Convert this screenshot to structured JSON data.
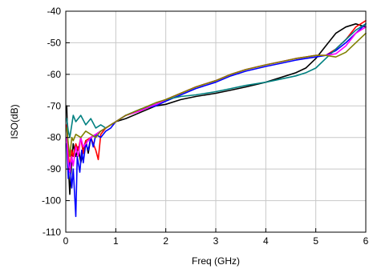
{
  "chart_data": {
    "type": "line",
    "title": "",
    "xlabel": "Freq (GHz)",
    "ylabel": "ISO(dB)",
    "xlim": [
      0,
      6
    ],
    "ylim": [
      -110,
      -40
    ],
    "xticks": [
      0,
      1,
      2,
      3,
      4,
      5,
      6
    ],
    "yticks": [
      -110,
      -100,
      -90,
      -80,
      -70,
      -60,
      -50,
      -40
    ],
    "grid": true,
    "legend": "none",
    "series": [
      {
        "color": "#000000",
        "x": [
          0.02,
          0.05,
          0.08,
          0.12,
          0.15,
          0.2,
          0.25,
          0.3,
          0.35,
          0.4,
          0.45,
          0.5,
          0.6,
          0.7,
          0.8,
          0.9,
          1.0,
          1.2,
          1.5,
          1.8,
          2.0,
          2.3,
          2.6,
          3.0,
          3.3,
          3.6,
          4.0,
          4.3,
          4.6,
          4.8,
          5.0,
          5.2,
          5.4,
          5.6,
          5.8,
          6.0
        ],
        "y": [
          -70,
          -88,
          -98,
          -87,
          -82,
          -86,
          -83,
          -88,
          -84,
          -81,
          -85,
          -80,
          -79,
          -78,
          -77,
          -76,
          -75,
          -74,
          -72,
          -70,
          -69.5,
          -68,
          -67,
          -66,
          -65,
          -64,
          -62.5,
          -61,
          -59.5,
          -58,
          -55,
          -51,
          -47,
          -45,
          -44,
          -45
        ]
      },
      {
        "color": "#ff0000",
        "x": [
          0.02,
          0.05,
          0.08,
          0.12,
          0.15,
          0.2,
          0.25,
          0.3,
          0.35,
          0.4,
          0.5,
          0.6,
          0.65,
          0.7,
          0.8,
          0.9,
          1.0,
          1.2,
          1.5,
          1.8,
          2.0,
          2.3,
          2.6,
          3.0,
          3.3,
          3.6,
          4.0,
          4.3,
          4.6,
          4.8,
          5.0,
          5.2,
          5.4,
          5.6,
          5.8,
          6.0
        ],
        "y": [
          -76,
          -85,
          -90,
          -84,
          -86,
          -82,
          -84,
          -80,
          -85,
          -81,
          -80,
          -84,
          -87,
          -79,
          -77,
          -76,
          -75,
          -73,
          -71.5,
          -69.5,
          -68,
          -66,
          -64,
          -62,
          -60,
          -58.5,
          -57,
          -56,
          -55,
          -54.5,
          -54,
          -54,
          -52,
          -49,
          -45,
          -43
        ]
      },
      {
        "color": "#0000ff",
        "x": [
          0.02,
          0.05,
          0.08,
          0.12,
          0.15,
          0.2,
          0.23,
          0.28,
          0.32,
          0.35,
          0.4,
          0.45,
          0.5,
          0.55,
          0.6,
          0.7,
          0.8,
          0.9,
          1.0,
          1.2,
          1.5,
          1.8,
          2.0,
          2.3,
          2.6,
          3.0,
          3.3,
          3.6,
          4.0,
          4.3,
          4.6,
          4.8,
          5.0,
          5.2,
          5.4,
          5.6,
          5.8,
          6.0
        ],
        "y": [
          -82,
          -93,
          -88,
          -96,
          -90,
          -105,
          -86,
          -91,
          -84,
          -88,
          -82,
          -84,
          -80,
          -83,
          -79,
          -80,
          -78,
          -77,
          -75,
          -73,
          -71,
          -70,
          -68.5,
          -66.5,
          -64.5,
          -62.5,
          -60.5,
          -59,
          -57.5,
          -56.5,
          -55.5,
          -55,
          -54.5,
          -54,
          -52.5,
          -50,
          -47,
          -44
        ]
      },
      {
        "color": "#008080",
        "x": [
          0.02,
          0.05,
          0.08,
          0.12,
          0.15,
          0.2,
          0.3,
          0.4,
          0.5,
          0.6,
          0.7,
          0.8,
          0.9,
          1.0,
          1.2,
          1.5,
          1.8,
          2.0,
          2.3,
          2.6,
          3.0,
          3.3,
          3.6,
          4.0,
          4.3,
          4.6,
          4.8,
          5.0,
          5.2,
          5.4,
          5.6,
          5.8,
          6.0
        ],
        "y": [
          -74,
          -78,
          -80,
          -76,
          -73,
          -75,
          -73,
          -76,
          -74,
          -77,
          -76,
          -77,
          -76,
          -75,
          -73,
          -71,
          -69.5,
          -68,
          -67,
          -66.5,
          -65.5,
          -64.5,
          -63.5,
          -62.5,
          -61.5,
          -60.5,
          -59.5,
          -58,
          -55,
          -52,
          -49,
          -46,
          -44
        ]
      },
      {
        "color": "#ff00ff",
        "x": [
          0.02,
          0.05,
          0.08,
          0.12,
          0.15,
          0.2,
          0.25,
          0.3,
          0.35,
          0.4,
          0.5,
          0.6,
          0.7,
          0.8,
          0.9,
          1.0,
          1.2,
          1.5,
          1.8,
          2.0,
          2.3,
          2.6,
          3.0,
          3.3,
          3.6,
          4.0,
          4.3,
          4.6,
          4.8,
          5.0,
          5.2,
          5.4,
          5.6,
          5.8,
          6.0
        ],
        "y": [
          -80,
          -88,
          -91,
          -86,
          -89,
          -83,
          -86,
          -80,
          -83,
          -82,
          -80,
          -79,
          -78,
          -77,
          -76,
          -75,
          -73,
          -71.5,
          -69.5,
          -68,
          -66,
          -64,
          -62,
          -60,
          -58.5,
          -57,
          -56,
          -55,
          -54.5,
          -54,
          -54,
          -53.5,
          -51,
          -47,
          -45
        ]
      },
      {
        "color": "#808000",
        "x": [
          0.02,
          0.05,
          0.08,
          0.12,
          0.15,
          0.2,
          0.3,
          0.4,
          0.5,
          0.6,
          0.7,
          0.8,
          0.9,
          1.0,
          1.2,
          1.5,
          1.8,
          2.0,
          2.3,
          2.6,
          3.0,
          3.3,
          3.6,
          4.0,
          4.3,
          4.6,
          4.8,
          5.0,
          5.2,
          5.4,
          5.6,
          5.8,
          6.0
        ],
        "y": [
          -77,
          -82,
          -86,
          -80,
          -81,
          -79,
          -80,
          -78,
          -79,
          -80,
          -78,
          -77,
          -76,
          -75,
          -73,
          -71,
          -69,
          -68,
          -66,
          -64,
          -62,
          -60,
          -58.5,
          -57,
          -56,
          -55,
          -54.5,
          -54,
          -54,
          -54.5,
          -53,
          -50,
          -47
        ]
      }
    ]
  }
}
